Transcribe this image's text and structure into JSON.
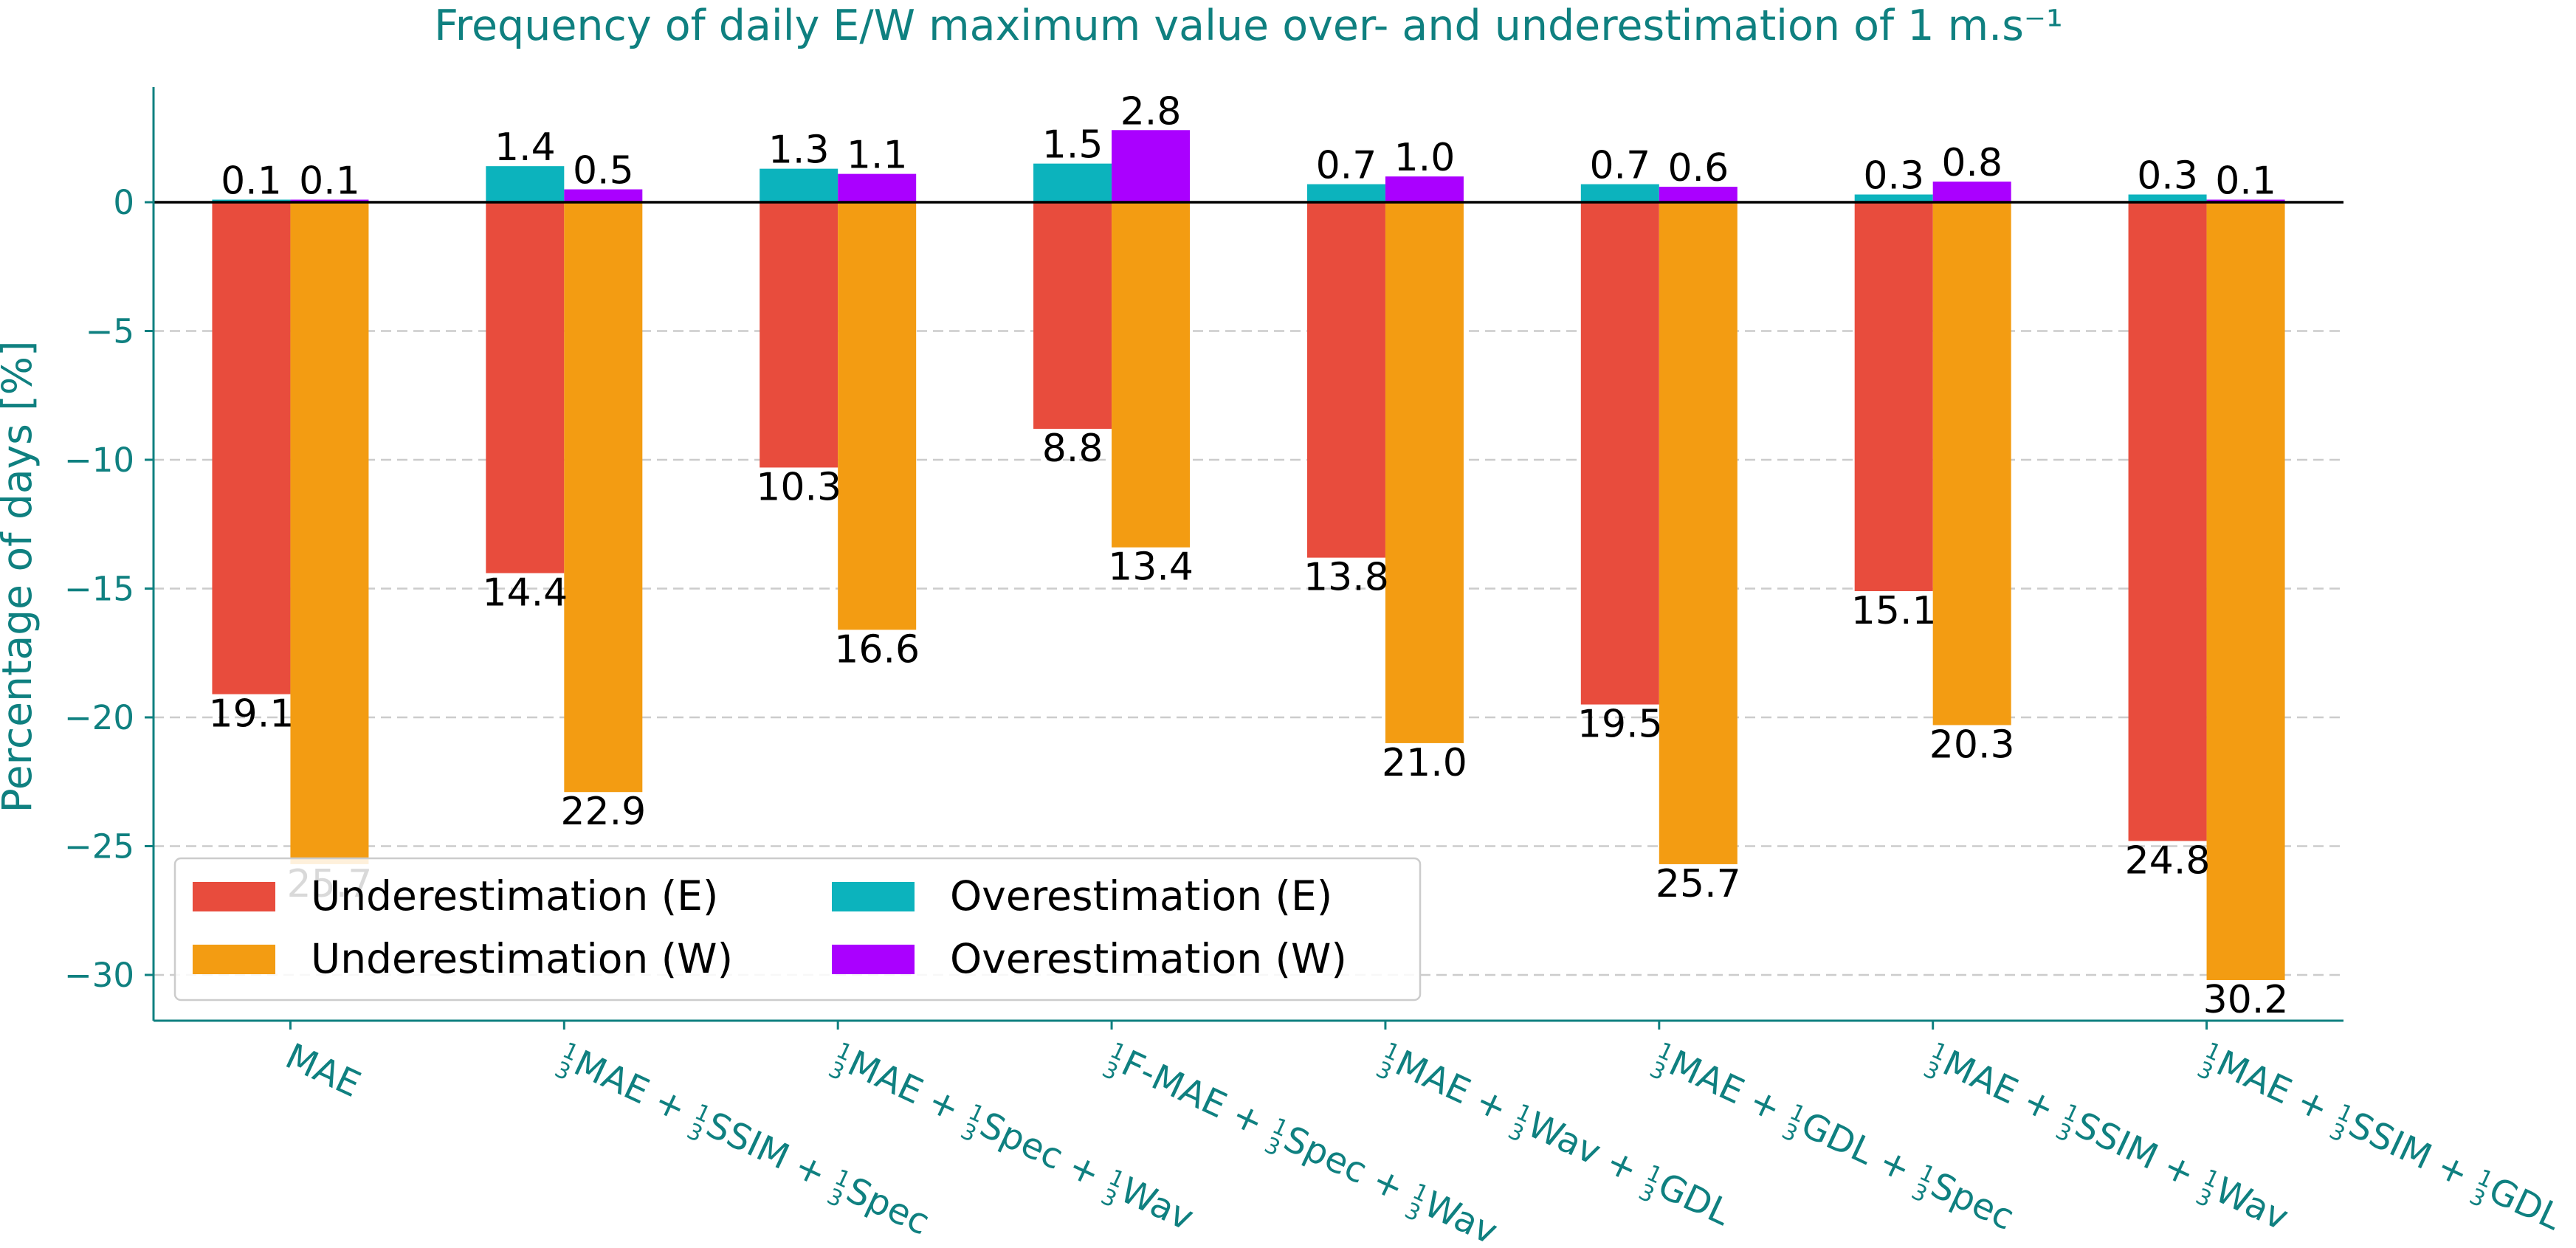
{
  "chart_data": {
    "type": "bar",
    "title": "Frequency of daily E/W maximum value over- and underestimation of 1 m.s⁻¹",
    "ylabel": "Percentage of days [%]",
    "ylim": [
      -32,
      4.5
    ],
    "yticks": [
      0,
      -5,
      -10,
      -15,
      -20,
      -25,
      -30
    ],
    "ytick_labels": [
      "0",
      "−5",
      "−10",
      "−15",
      "−20",
      "−25",
      "−30"
    ],
    "grid": "horizontal dashed",
    "legend_position": "lower-left",
    "categories": [
      "MAE",
      "1/3MAE + 1/3SSIM + 1/3Spec",
      "1/3MAE + 1/3Spec + 1/3Wav",
      "1/3F-MAE + 1/3Spec + 1/3Wav",
      "1/3MAE + 1/3Wav + 1/3GDL",
      "1/3MAE + 1/3GDL + 1/3Spec",
      "1/3MAE + 1/3SSIM + 1/3Wav",
      "1/3MAE + 1/3SSIM + 1/3GDL"
    ],
    "category_parts": [
      [
        [
          "",
          "MAE"
        ]
      ],
      [
        [
          "1/3",
          "MAE + "
        ],
        [
          "1/3",
          "SSIM + "
        ],
        [
          "1/3",
          "Spec"
        ]
      ],
      [
        [
          "1/3",
          "MAE + "
        ],
        [
          "1/3",
          "Spec + "
        ],
        [
          "1/3",
          "Wav"
        ]
      ],
      [
        [
          "1/3",
          "F-MAE + "
        ],
        [
          "1/3",
          "Spec + "
        ],
        [
          "1/3",
          "Wav"
        ]
      ],
      [
        [
          "1/3",
          "MAE + "
        ],
        [
          "1/3",
          "Wav + "
        ],
        [
          "1/3",
          "GDL"
        ]
      ],
      [
        [
          "1/3",
          "MAE + "
        ],
        [
          "1/3",
          "GDL + "
        ],
        [
          "1/3",
          "Spec"
        ]
      ],
      [
        [
          "1/3",
          "MAE + "
        ],
        [
          "1/3",
          "SSIM + "
        ],
        [
          "1/3",
          "Wav"
        ]
      ],
      [
        [
          "1/3",
          "MAE + "
        ],
        [
          "1/3",
          "SSIM + "
        ],
        [
          "1/3",
          "GDL"
        ]
      ]
    ],
    "series": [
      {
        "name": "Underestimation (E)",
        "color": "#e84c3d",
        "values": [
          -19.1,
          -14.4,
          -10.3,
          -8.8,
          -13.8,
          -19.5,
          -15.1,
          -24.8
        ],
        "labels": [
          "19.1",
          "14.4",
          "10.3",
          "8.8",
          "13.8",
          "19.5",
          "15.1",
          "24.8"
        ]
      },
      {
        "name": "Overestimation (E)",
        "color": "#0cb3bd",
        "values": [
          0.1,
          1.4,
          1.3,
          1.5,
          0.7,
          0.7,
          0.3,
          0.3
        ],
        "labels": [
          "0.1",
          "1.4",
          "1.3",
          "1.5",
          "0.7",
          "0.7",
          "0.3",
          "0.3"
        ]
      },
      {
        "name": "Underestimation (W)",
        "color": "#f39c12",
        "values": [
          -25.7,
          -22.9,
          -16.6,
          -13.4,
          -21.0,
          -25.7,
          -20.3,
          -30.2
        ],
        "labels": [
          "25.7",
          "22.9",
          "16.6",
          "13.4",
          "21.0",
          "25.7",
          "20.3",
          "30.2"
        ]
      },
      {
        "name": "Overestimation (W)",
        "color": "#aa00ff",
        "values": [
          0.1,
          0.5,
          1.1,
          2.8,
          1.0,
          0.6,
          0.8,
          0.1
        ],
        "labels": [
          "0.1",
          "0.5",
          "1.1",
          "2.8",
          "1.0",
          "0.6",
          "0.8",
          "0.1"
        ]
      }
    ],
    "legend_order": [
      0,
      2,
      1,
      3
    ],
    "colors": {
      "axis": "#0f8080",
      "grid": "#cccccc",
      "zero_line": "#000000"
    }
  }
}
